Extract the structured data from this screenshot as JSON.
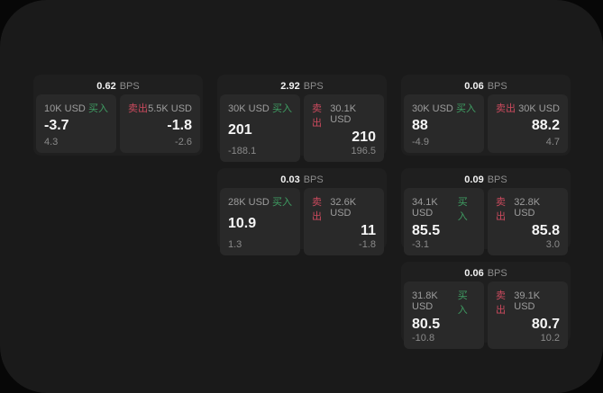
{
  "labels": {
    "buy": "买入",
    "sell": "卖出",
    "bps_unit": "BPS"
  },
  "colors": {
    "buy_green": "#3f9e63",
    "sell_red": "#cc4a5e",
    "window_bg": "#1a1a1a",
    "card_bg": "#1f1f1f",
    "panel_bg": "#292929"
  },
  "cards": [
    {
      "row": 1,
      "col": 1,
      "bps": "0.62",
      "buy": {
        "notional": "10K USD",
        "price": "-3.7",
        "change": "4.3"
      },
      "sell": {
        "notional": "5.5K USD",
        "price": "-1.8",
        "change": "-2.6"
      }
    },
    {
      "row": 1,
      "col": 2,
      "bps": "2.92",
      "buy": {
        "notional": "30K USD",
        "price": "201",
        "change": "-188.1"
      },
      "sell": {
        "notional": "30.1K USD",
        "price": "210",
        "change": "196.5"
      }
    },
    {
      "row": 1,
      "col": 3,
      "bps": "0.06",
      "buy": {
        "notional": "30K USD",
        "price": "88",
        "change": "-4.9"
      },
      "sell": {
        "notional": "30K USD",
        "price": "88.2",
        "change": "4.7"
      }
    },
    {
      "row": 2,
      "col": 2,
      "bps": "0.03",
      "buy": {
        "notional": "28K USD",
        "price": "10.9",
        "change": "1.3"
      },
      "sell": {
        "notional": "32.6K USD",
        "price": "11",
        "change": "-1.8"
      }
    },
    {
      "row": 2,
      "col": 3,
      "bps": "0.09",
      "buy": {
        "notional": "34.1K USD",
        "price": "85.5",
        "change": "-3.1"
      },
      "sell": {
        "notional": "32.8K USD",
        "price": "85.8",
        "change": "3.0"
      }
    },
    {
      "row": 3,
      "col": 3,
      "bps": "0.06",
      "buy": {
        "notional": "31.8K USD",
        "price": "80.5",
        "change": "-10.8"
      },
      "sell": {
        "notional": "39.1K USD",
        "price": "80.7",
        "change": "10.2"
      }
    }
  ]
}
